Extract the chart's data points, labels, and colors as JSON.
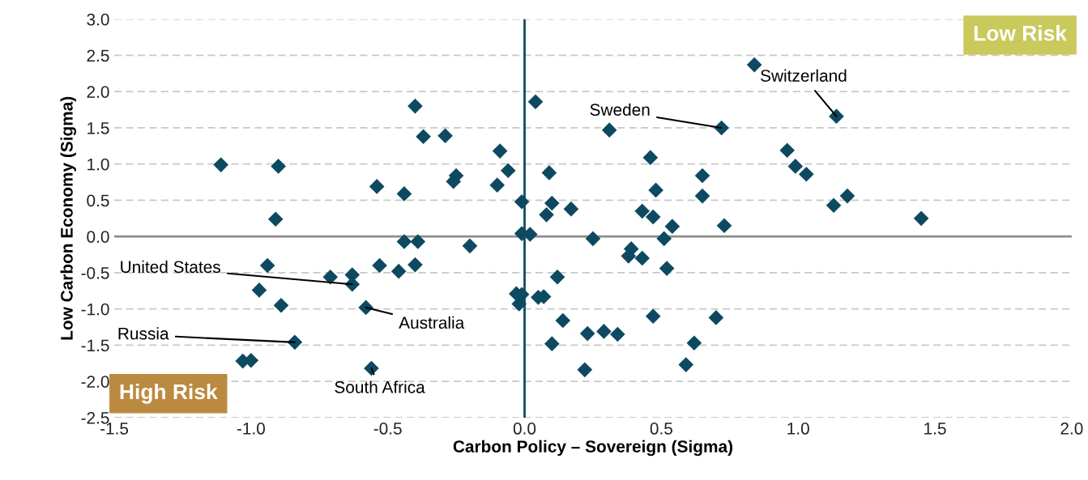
{
  "chart_data": {
    "type": "scatter",
    "xlabel": "Carbon Policy – Sovereign (Sigma)",
    "ylabel": "Low Carbon Economy (Sigma)",
    "x": [
      -1.11,
      -0.9,
      -0.91,
      -0.94,
      -0.97,
      -0.89,
      -0.84,
      -1.03,
      -1.0,
      -0.71,
      -0.63,
      -0.63,
      -0.58,
      -0.56,
      -0.54,
      -0.53,
      -0.44,
      -0.44,
      -0.39,
      -0.46,
      -0.4,
      -0.4,
      -0.37,
      -0.29,
      -0.2,
      -0.25,
      -0.26,
      -0.09,
      -0.1,
      -0.06,
      -0.02,
      -0.03,
      0.04,
      0.31,
      0.72,
      0.84,
      1.14,
      0.09,
      0.1,
      0.08,
      0.17,
      -0.01,
      -0.01,
      0.02,
      0.25,
      0.46,
      0.48,
      0.43,
      0.47,
      0.54,
      0.51,
      0.65,
      0.65,
      0.73,
      0.96,
      0.99,
      1.03,
      1.13,
      1.18,
      1.45,
      0.39,
      0.38,
      0.43,
      0.52,
      0.12,
      0.05,
      0.07,
      -0.01,
      0.14,
      0.1,
      0.23,
      0.29,
      0.34,
      0.47,
      0.7,
      0.62,
      0.59,
      0.22
    ],
    "values": [
      0.99,
      0.97,
      0.24,
      -0.4,
      -0.74,
      -0.95,
      -1.46,
      -1.72,
      -1.71,
      -0.56,
      -0.53,
      -0.66,
      -0.98,
      -1.82,
      0.69,
      -0.4,
      0.59,
      -0.07,
      -0.07,
      -0.48,
      -0.39,
      1.8,
      1.38,
      1.39,
      -0.13,
      0.84,
      0.76,
      1.18,
      0.71,
      0.91,
      -0.93,
      -0.79,
      1.86,
      1.47,
      1.5,
      2.37,
      1.66,
      0.88,
      0.46,
      0.3,
      0.38,
      0.48,
      0.04,
      0.03,
      -0.03,
      1.09,
      0.64,
      0.35,
      0.27,
      0.14,
      -0.03,
      0.84,
      0.56,
      0.15,
      1.19,
      0.97,
      0.86,
      0.43,
      0.56,
      0.25,
      -0.17,
      -0.27,
      -0.3,
      -0.44,
      -0.56,
      -0.84,
      -0.83,
      -0.8,
      -1.16,
      -1.48,
      -1.34,
      -1.31,
      -1.35,
      -1.1,
      -1.12,
      -1.47,
      -1.77,
      -1.84
    ],
    "color": "#0d4a62",
    "marker": "diamond",
    "xlim": [
      -1.5,
      2.0
    ],
    "xticks": [
      {
        "value": -1.5,
        "label": "-1.5"
      },
      {
        "value": -1.0,
        "label": "-1.0"
      },
      {
        "value": -0.5,
        "label": "-0.5"
      },
      {
        "value": 0,
        "label": "0.0"
      },
      {
        "value": 0.5,
        "label": "0.5"
      },
      {
        "value": 1.0,
        "label": "1.0"
      },
      {
        "value": 1.5,
        "label": "1.5"
      },
      {
        "value": 2.0,
        "label": "2.0"
      }
    ],
    "ylim": [
      -2.5,
      3.0
    ],
    "yticks": [
      {
        "value": -2.5,
        "label": "-2.5"
      },
      {
        "value": -2.0,
        "label": "-2.0"
      },
      {
        "value": -1.5,
        "label": "-1.5"
      },
      {
        "value": -1.0,
        "label": "-1.0"
      },
      {
        "value": -0.5,
        "label": "-0.5"
      },
      {
        "value": 0,
        "label": "0.0"
      },
      {
        "value": 0.5,
        "label": "0.5"
      },
      {
        "value": 1.0,
        "label": "1.0"
      },
      {
        "value": 1.5,
        "label": "1.5"
      },
      {
        "value": 2.0,
        "label": "2.0"
      },
      {
        "value": 2.5,
        "label": "2.5"
      },
      {
        "value": 3.0,
        "label": "3.0"
      }
    ],
    "grid": "y",
    "ref_lines": [
      {
        "axis": "x",
        "value": 0,
        "color": "#0d4a62"
      },
      {
        "axis": "y",
        "value": 0,
        "color": "#8c8c8c"
      }
    ],
    "annotations": [
      "Low Risk",
      "High Risk",
      {
        "text": "United States",
        "x": -0.63,
        "y": -0.66
      },
      {
        "text": "Australia",
        "x": -0.58,
        "y": -0.98
      },
      {
        "text": "Russia",
        "x": -0.84,
        "y": -1.46
      },
      {
        "text": "South Africa",
        "x": -0.56,
        "y": -1.82
      },
      {
        "text": "Sweden",
        "x": 0.72,
        "y": 1.5
      },
      {
        "text": "Switzerland",
        "x": 1.14,
        "y": 1.66
      }
    ]
  }
}
